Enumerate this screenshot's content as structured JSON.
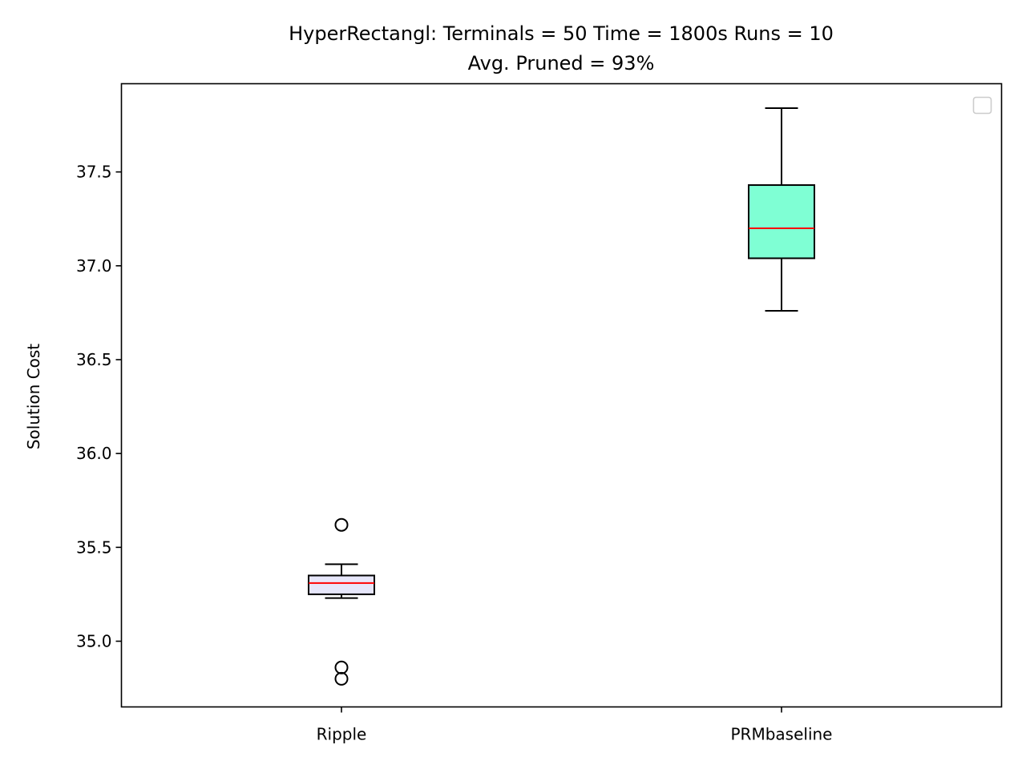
{
  "chart_data": {
    "type": "box",
    "title_line1": "HyperRectangl:  Terminals = 50  Time = 1800s  Runs = 10",
    "title_line2": "Avg. Pruned = 93%",
    "xlabel": "",
    "ylabel": "Solution Cost",
    "categories": [
      "Ripple",
      "PRMbaseline"
    ],
    "ylim": [
      34.65,
      37.97
    ],
    "yticks": [
      35.0,
      35.5,
      36.0,
      36.5,
      37.0,
      37.5
    ],
    "ytick_labels": [
      "35.0",
      "35.5",
      "36.0",
      "36.5",
      "37.0",
      "37.5"
    ],
    "legend": {
      "visible": true,
      "location": "upper right",
      "entries": []
    },
    "grid": false,
    "median_color": "#ff0000",
    "boxes": [
      {
        "category": "Ripple",
        "fill": "#e6e6fa",
        "whisker_low": 35.23,
        "q1": 35.25,
        "median": 35.31,
        "q3": 35.35,
        "whisker_high": 35.41,
        "outliers": [
          35.62,
          34.86,
          34.8
        ]
      },
      {
        "category": "PRMbaseline",
        "fill": "#7fffd4",
        "whisker_low": 36.76,
        "q1": 37.04,
        "median": 37.2,
        "q3": 37.43,
        "whisker_high": 37.84,
        "outliers": []
      }
    ]
  }
}
